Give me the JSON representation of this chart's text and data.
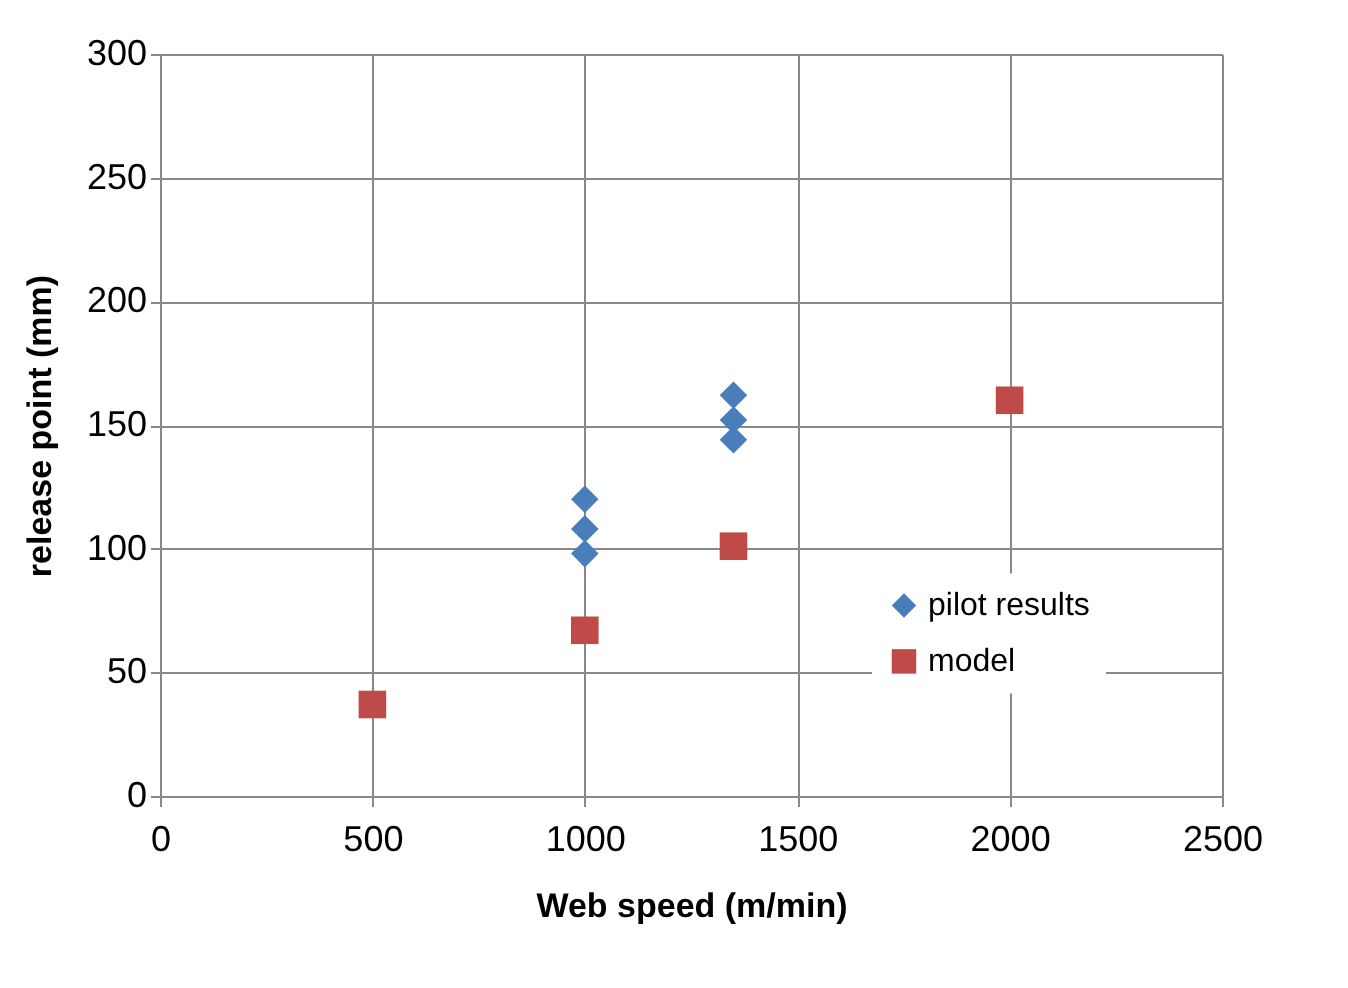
{
  "chart_data": {
    "type": "scatter",
    "xlabel": "Web speed (m/min)",
    "ylabel": "release point (mm)",
    "xlim": [
      0,
      2500
    ],
    "xticks": [
      0,
      500,
      1000,
      1500,
      2000,
      2500
    ],
    "ylim": [
      0,
      300
    ],
    "yticks": [
      0,
      50,
      100,
      150,
      200,
      250,
      300
    ],
    "grid": true,
    "legend": "right",
    "series": [
      {
        "name": "pilot results",
        "color": "#4a7ebb",
        "marker": "diamond",
        "x": [
          1000,
          1000,
          1000,
          1350,
          1350,
          1350
        ],
        "values": [
          120,
          108,
          98,
          162,
          152,
          144
        ]
      },
      {
        "name": "model",
        "color": "#be4b48",
        "marker": "square",
        "x": [
          500,
          1000,
          1350,
          2000
        ],
        "values": [
          37,
          67,
          101,
          160
        ]
      }
    ]
  }
}
